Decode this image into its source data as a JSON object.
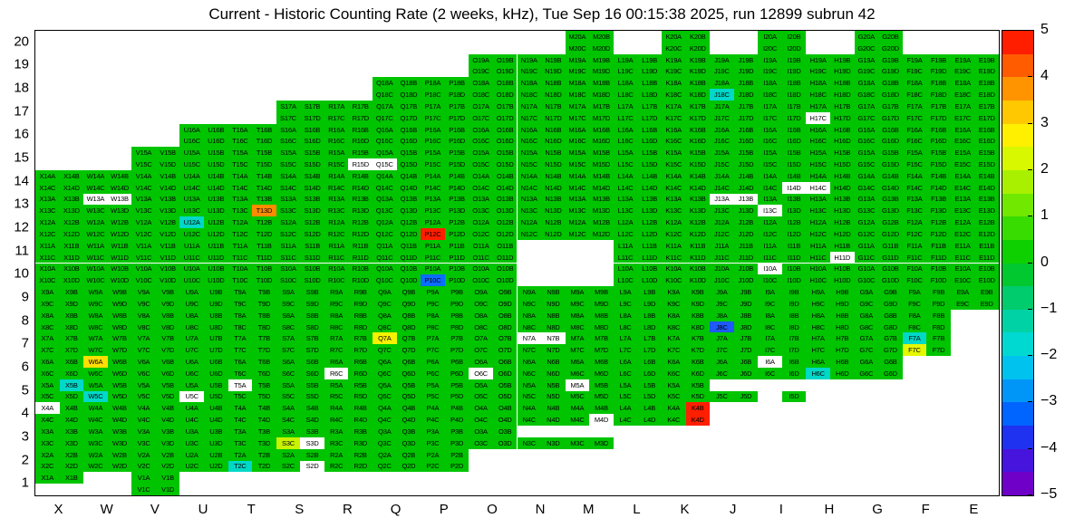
{
  "chart_data": {
    "type": "heatmap",
    "title": "Current - Historic Counting Rate (2 weeks, kHz), Tue Sep 16 00:15:38 2025, run 12899 subrun 42",
    "columns": [
      "X",
      "W",
      "V",
      "U",
      "T",
      "S",
      "R",
      "Q",
      "P",
      "O",
      "N",
      "M",
      "L",
      "K",
      "J",
      "I",
      "H",
      "G",
      "F",
      "E"
    ],
    "rows": [
      20,
      19,
      18,
      17,
      16,
      15,
      14,
      13,
      12,
      11,
      10,
      9,
      8,
      7,
      6,
      5,
      4,
      3,
      2,
      1
    ],
    "sub_cells": [
      "A",
      "B",
      "C",
      "D"
    ],
    "cell_label_format": "{column}{row}{sub}",
    "legend_position": "right",
    "grid": false,
    "value_scale": {
      "min": -5,
      "max": 5,
      "ticks": [
        5,
        4,
        3,
        2,
        1,
        0,
        -1,
        -2,
        -3,
        -4,
        -5
      ],
      "tick_labels": [
        "5",
        "4",
        "3",
        "2",
        "1",
        "0",
        "−1",
        "−2",
        "−3",
        "−4",
        "−5"
      ]
    },
    "default_cell": {
      "value": 0.5,
      "color": "#00c400"
    },
    "palette_top_to_bottom": [
      "#ff1e00",
      "#ff5c00",
      "#ff9400",
      "#ffc800",
      "#fff000",
      "#d8f800",
      "#a8f000",
      "#70e800",
      "#38dc00",
      "#0ed000",
      "#00c82e",
      "#00cc6e",
      "#00d2a6",
      "#00d8d2",
      "#00c2ee",
      "#0096f8",
      "#0064ff",
      "#1e32f0",
      "#4614dc",
      "#6e00c8"
    ],
    "rows_blocks": [
      {
        "row": 20,
        "full": [
          "M",
          "K",
          "I",
          "G"
        ]
      },
      {
        "row": 19,
        "full": [
          "O",
          "N",
          "M",
          "L",
          "K",
          "J",
          "I",
          "H",
          "G",
          "F",
          "E"
        ]
      },
      {
        "row": 18,
        "full": [
          "Q",
          "P",
          "O",
          "N",
          "M",
          "L",
          "K",
          "J",
          "I",
          "H",
          "G",
          "F",
          "E"
        ]
      },
      {
        "row": 17,
        "full": [
          "S",
          "R",
          "Q",
          "P",
          "O",
          "N",
          "M",
          "L",
          "K",
          "J",
          "I",
          "H",
          "G",
          "F",
          "E"
        ]
      },
      {
        "row": 16,
        "full": [
          "U",
          "T",
          "S",
          "R",
          "Q",
          "P",
          "O",
          "N",
          "M",
          "L",
          "K",
          "J",
          "I",
          "H",
          "G",
          "F",
          "E"
        ]
      },
      {
        "row": 15,
        "full": [
          "V",
          "U",
          "T",
          "S",
          "R",
          "Q",
          "P",
          "O",
          "N",
          "M",
          "L",
          "K",
          "J",
          "I",
          "H",
          "G",
          "F",
          "E"
        ]
      },
      {
        "row": 14,
        "full": [
          "X",
          "W",
          "V",
          "U",
          "T",
          "S",
          "R",
          "Q",
          "P",
          "O",
          "N",
          "M",
          "L",
          "K",
          "J",
          "I",
          "H",
          "G",
          "F",
          "E"
        ]
      },
      {
        "row": 13,
        "full": [
          "X",
          "W",
          "V",
          "U",
          "T",
          "S",
          "R",
          "Q",
          "P",
          "O",
          "N",
          "M",
          "L",
          "K",
          "J",
          "I",
          "H",
          "G",
          "F",
          "E"
        ]
      },
      {
        "row": 12,
        "full": [
          "X",
          "W",
          "V",
          "U",
          "T",
          "S",
          "R",
          "Q",
          "P",
          "O",
          "N",
          "M",
          "L",
          "K",
          "J",
          "I",
          "H",
          "G",
          "F",
          "E"
        ]
      },
      {
        "row": 11,
        "full": [
          "X",
          "W",
          "V",
          "U",
          "T",
          "S",
          "R",
          "Q",
          "P",
          "O",
          "L",
          "K",
          "J",
          "I",
          "H",
          "G",
          "F",
          "E"
        ]
      },
      {
        "row": 10,
        "full": [
          "X",
          "W",
          "V",
          "U",
          "T",
          "S",
          "R",
          "Q",
          "P",
          "O",
          "L",
          "K",
          "J",
          "I",
          "H",
          "G",
          "F",
          "E"
        ]
      },
      {
        "row": 9,
        "full": [
          "X",
          "W",
          "V",
          "U",
          "T",
          "S",
          "R",
          "Q",
          "P",
          "O",
          "N",
          "M",
          "L",
          "K",
          "J",
          "I",
          "H",
          "G",
          "F",
          "E"
        ]
      },
      {
        "row": 8,
        "full": [
          "X",
          "W",
          "V",
          "U",
          "T",
          "S",
          "R",
          "Q",
          "P",
          "O",
          "N",
          "M",
          "L",
          "K",
          "J",
          "I",
          "H",
          "G",
          "F"
        ]
      },
      {
        "row": 7,
        "full": [
          "X",
          "W",
          "V",
          "U",
          "T",
          "S",
          "R",
          "Q",
          "P",
          "O",
          "N",
          "M",
          "L",
          "K",
          "J",
          "I",
          "H",
          "G",
          "F"
        ]
      },
      {
        "row": 6,
        "full": [
          "X",
          "W",
          "V",
          "U",
          "T",
          "S",
          "R",
          "Q",
          "P",
          "O",
          "N",
          "M",
          "L",
          "K",
          "J",
          "I",
          "H",
          "G"
        ]
      },
      {
        "row": 5,
        "full": [
          "X",
          "W",
          "V",
          "U",
          "T",
          "S",
          "R",
          "Q",
          "P",
          "O",
          "N",
          "M",
          "L",
          "K"
        ],
        "partial": {
          "J": [
            "C",
            "D"
          ],
          "I": [
            "D"
          ]
        }
      },
      {
        "row": 4,
        "full": [
          "X",
          "W",
          "V",
          "U",
          "T",
          "S",
          "R",
          "Q",
          "P",
          "O",
          "N",
          "M",
          "L",
          "K"
        ]
      },
      {
        "row": 3,
        "full": [
          "X",
          "W",
          "V",
          "U",
          "T",
          "S",
          "R",
          "Q",
          "P",
          "O"
        ],
        "partial": {
          "N": [
            "C",
            "D"
          ],
          "M": [
            "C",
            "D"
          ]
        }
      },
      {
        "row": 2,
        "full": [
          "X",
          "W",
          "V",
          "U",
          "T",
          "S",
          "R",
          "Q",
          "P"
        ]
      },
      {
        "row": 1,
        "full": [
          "V"
        ],
        "partial": {
          "X": [
            "A",
            "B"
          ]
        }
      }
    ],
    "special_cells": [
      {
        "id": "P12C",
        "color": "#ff1e00",
        "value": 4.8
      },
      {
        "id": "K4B",
        "color": "#ff1e00",
        "value": 4.8
      },
      {
        "id": "K4D",
        "color": "#ff1e00",
        "value": 4.8
      },
      {
        "id": "T13D",
        "color": "#ff8c00",
        "value": 3.6
      },
      {
        "id": "W6A",
        "color": "#ffdf00",
        "value": 2.7
      },
      {
        "id": "Q7A",
        "color": "#f7f200",
        "value": 2.4
      },
      {
        "id": "F7C",
        "color": "#e6f800",
        "value": 2.3
      },
      {
        "id": "S3C",
        "color": "#c9f400",
        "value": 2.0
      },
      {
        "id": "U12A",
        "color": "#00d8c8",
        "value": -1.2
      },
      {
        "id": "J18C",
        "color": "#00d8c8",
        "value": -1.2
      },
      {
        "id": "T2C",
        "color": "#00d8c8",
        "value": -1.2
      },
      {
        "id": "H6C",
        "color": "#00d8c8",
        "value": -1.2
      },
      {
        "id": "X5B",
        "color": "#00d8c8",
        "value": -1.2
      },
      {
        "id": "W5C",
        "color": "#00d8c8",
        "value": -1.2
      },
      {
        "id": "F7A",
        "color": "#00d8c8",
        "value": -1.2
      },
      {
        "id": "J8C",
        "color": "#1e5aff",
        "value": -2.6
      },
      {
        "id": "P10C",
        "color": "#0a6eff",
        "value": -2.4
      },
      {
        "id": "X4A",
        "color": "#ffffff",
        "value": null
      },
      {
        "id": "M4D",
        "color": "#ffffff",
        "value": null
      },
      {
        "id": "M5A",
        "color": "#ffffff",
        "value": null
      },
      {
        "id": "T5A",
        "color": "#ffffff",
        "value": null
      },
      {
        "id": "U5C",
        "color": "#ffffff",
        "value": null
      },
      {
        "id": "I6A",
        "color": "#ffffff",
        "value": null
      },
      {
        "id": "O6C",
        "color": "#ffffff",
        "value": null
      },
      {
        "id": "R6C",
        "color": "#ffffff",
        "value": null
      },
      {
        "id": "N7A",
        "color": "#ffffff",
        "value": null
      },
      {
        "id": "N7B",
        "color": "#ffffff",
        "value": null
      },
      {
        "id": "I10A",
        "color": "#ffffff",
        "value": null
      },
      {
        "id": "H11D",
        "color": "#ffffff",
        "value": null
      },
      {
        "id": "W13A",
        "color": "#ffffff",
        "value": null
      },
      {
        "id": "W13B",
        "color": "#ffffff",
        "value": null
      },
      {
        "id": "J13A",
        "color": "#ffffff",
        "value": null
      },
      {
        "id": "J13B",
        "color": "#ffffff",
        "value": null
      },
      {
        "id": "I13C",
        "color": "#ffffff",
        "value": null
      },
      {
        "id": "I14D",
        "color": "#ffffff",
        "value": null
      },
      {
        "id": "H14C",
        "color": "#ffffff",
        "value": null
      },
      {
        "id": "R15D",
        "color": "#ffffff",
        "value": null
      },
      {
        "id": "Q15C",
        "color": "#ffffff",
        "value": null
      },
      {
        "id": "H17C",
        "color": "#ffffff",
        "value": null
      },
      {
        "id": "S3D",
        "color": "#ffffff",
        "value": null
      },
      {
        "id": "S2D",
        "color": "#ffffff",
        "value": null
      }
    ],
    "colors": {
      "background": "#ffffff",
      "frame": "#000000",
      "cell_text": "#000000"
    }
  }
}
